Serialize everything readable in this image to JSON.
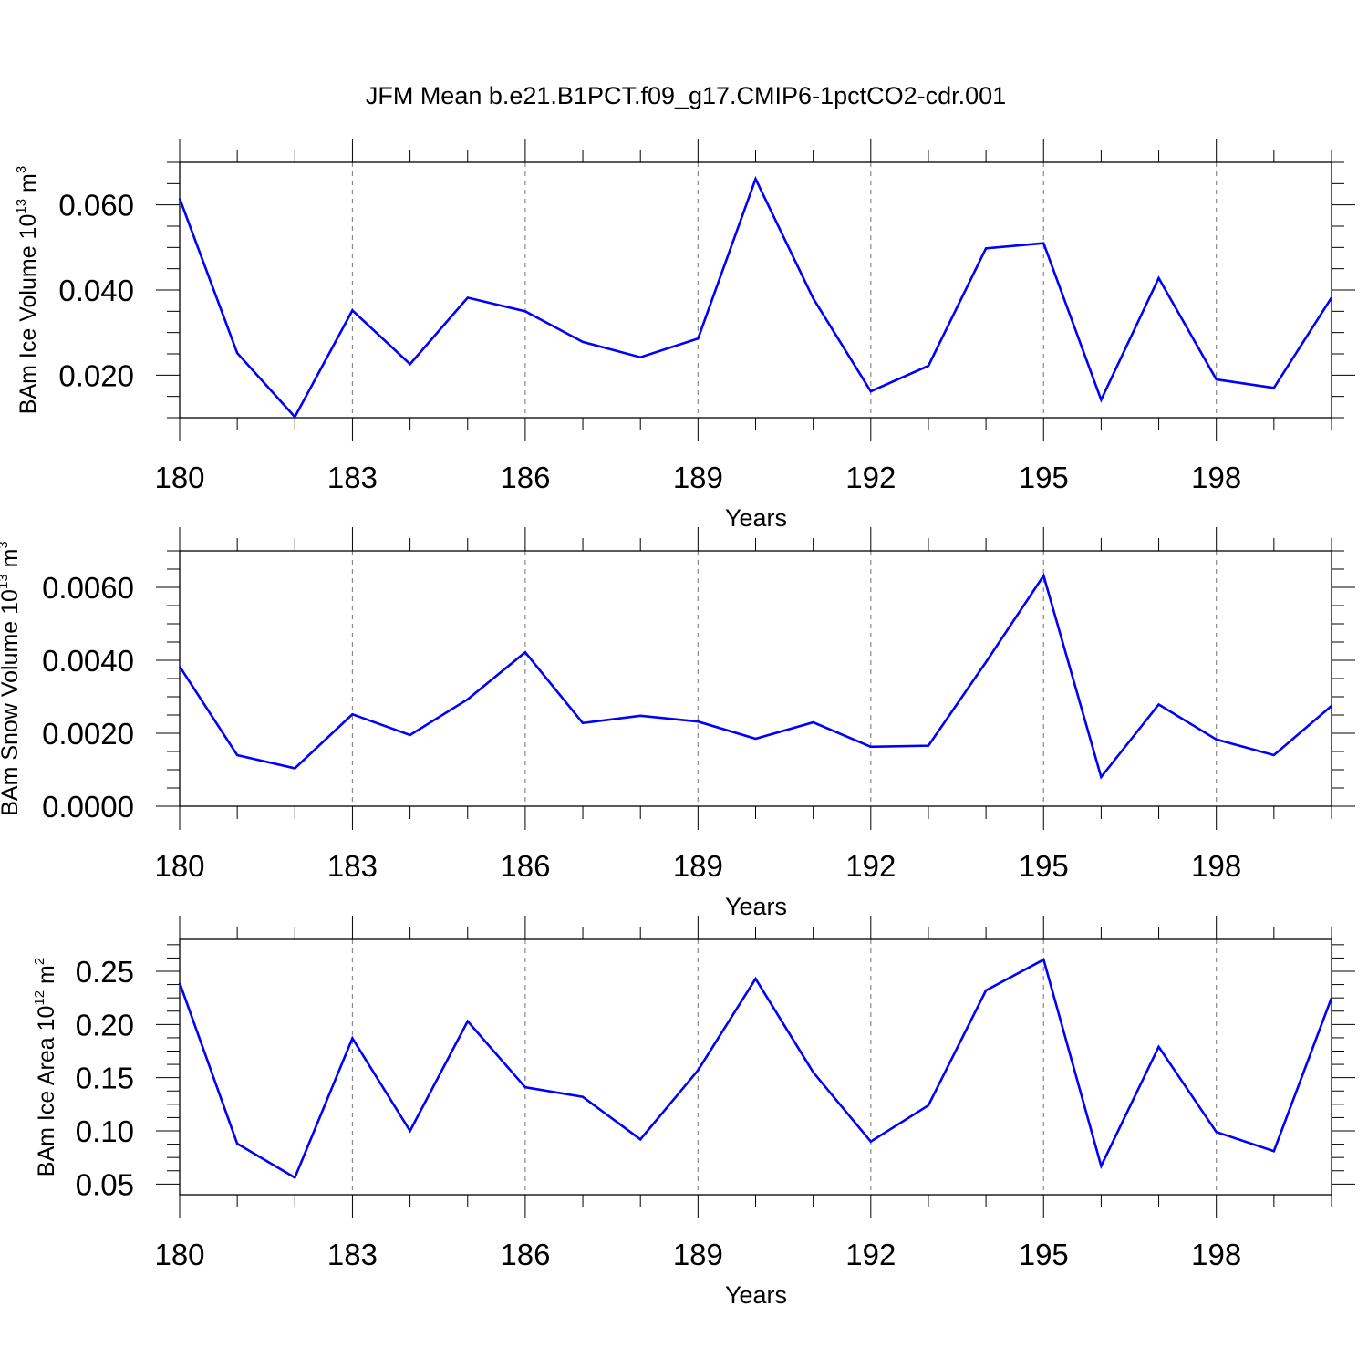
{
  "title": "JFM Mean b.e21.B1PCT.f09_g17.CMIP6-1pctCO2-cdr.001",
  "colors": {
    "line": "#0000ff",
    "frame": "#000000",
    "grid": "#888888"
  },
  "chart_data": [
    {
      "type": "line",
      "xlabel": "Years",
      "ylabel": {
        "text": "BAm Ice Volume 10",
        "exponent": "13",
        "unit": "m",
        "unit_exponent": "3"
      },
      "xlim": [
        180,
        200
      ],
      "ylim": [
        0.01,
        0.07
      ],
      "x_ticks": [
        "180",
        "183",
        "186",
        "189",
        "192",
        "195",
        "198"
      ],
      "y_ticks": [
        "0.020",
        "0.040",
        "0.060"
      ],
      "grid": "vertical dashed at major x ticks",
      "x": [
        180,
        181,
        182,
        183,
        184,
        185,
        186,
        187,
        188,
        189,
        190,
        191,
        192,
        193,
        194,
        195,
        196,
        197,
        198,
        199,
        200
      ],
      "values": [
        0.0615,
        0.0252,
        0.0102,
        0.0352,
        0.0226,
        0.0382,
        0.035,
        0.0278,
        0.0242,
        0.0286,
        0.0661,
        0.038,
        0.0162,
        0.0222,
        0.0498,
        0.051,
        0.0142,
        0.0428,
        0.019,
        0.017,
        0.0382
      ]
    },
    {
      "type": "line",
      "xlabel": "Years",
      "ylabel": {
        "text": "BAm Snow Volume 10",
        "exponent": "13",
        "unit": "m",
        "unit_exponent": "3"
      },
      "xlim": [
        180,
        200
      ],
      "ylim": [
        0.0,
        0.007
      ],
      "x_ticks": [
        "180",
        "183",
        "186",
        "189",
        "192",
        "195",
        "198"
      ],
      "y_ticks": [
        "0.0000",
        "0.0020",
        "0.0040",
        "0.0060"
      ],
      "grid": "vertical dashed at major x ticks",
      "x": [
        180,
        181,
        182,
        183,
        184,
        185,
        186,
        187,
        188,
        189,
        190,
        191,
        192,
        193,
        194,
        195,
        196,
        197,
        198,
        199,
        200
      ],
      "values": [
        0.00383,
        0.0014,
        0.00104,
        0.00252,
        0.00195,
        0.00293,
        0.00422,
        0.00228,
        0.00248,
        0.00232,
        0.00185,
        0.0023,
        0.00163,
        0.00166,
        0.00395,
        0.00632,
        0.0008,
        0.00279,
        0.00183,
        0.0014,
        0.00275
      ]
    },
    {
      "type": "line",
      "xlabel": "Years",
      "ylabel": {
        "text": "BAm Ice Area 10",
        "exponent": "12",
        "unit": "m",
        "unit_exponent": "2"
      },
      "xlim": [
        180,
        200
      ],
      "ylim": [
        0.04,
        0.28
      ],
      "x_ticks": [
        "180",
        "183",
        "186",
        "189",
        "192",
        "195",
        "198"
      ],
      "y_ticks": [
        "0.05",
        "0.10",
        "0.15",
        "0.20",
        "0.25"
      ],
      "grid": "vertical dashed at major x ticks",
      "x": [
        180,
        181,
        182,
        183,
        184,
        185,
        186,
        187,
        188,
        189,
        190,
        191,
        192,
        193,
        194,
        195,
        196,
        197,
        198,
        199,
        200
      ],
      "values": [
        0.239,
        0.088,
        0.056,
        0.187,
        0.1,
        0.203,
        0.141,
        0.132,
        0.092,
        0.157,
        0.243,
        0.155,
        0.09,
        0.124,
        0.232,
        0.261,
        0.067,
        0.179,
        0.099,
        0.081,
        0.225
      ]
    }
  ]
}
